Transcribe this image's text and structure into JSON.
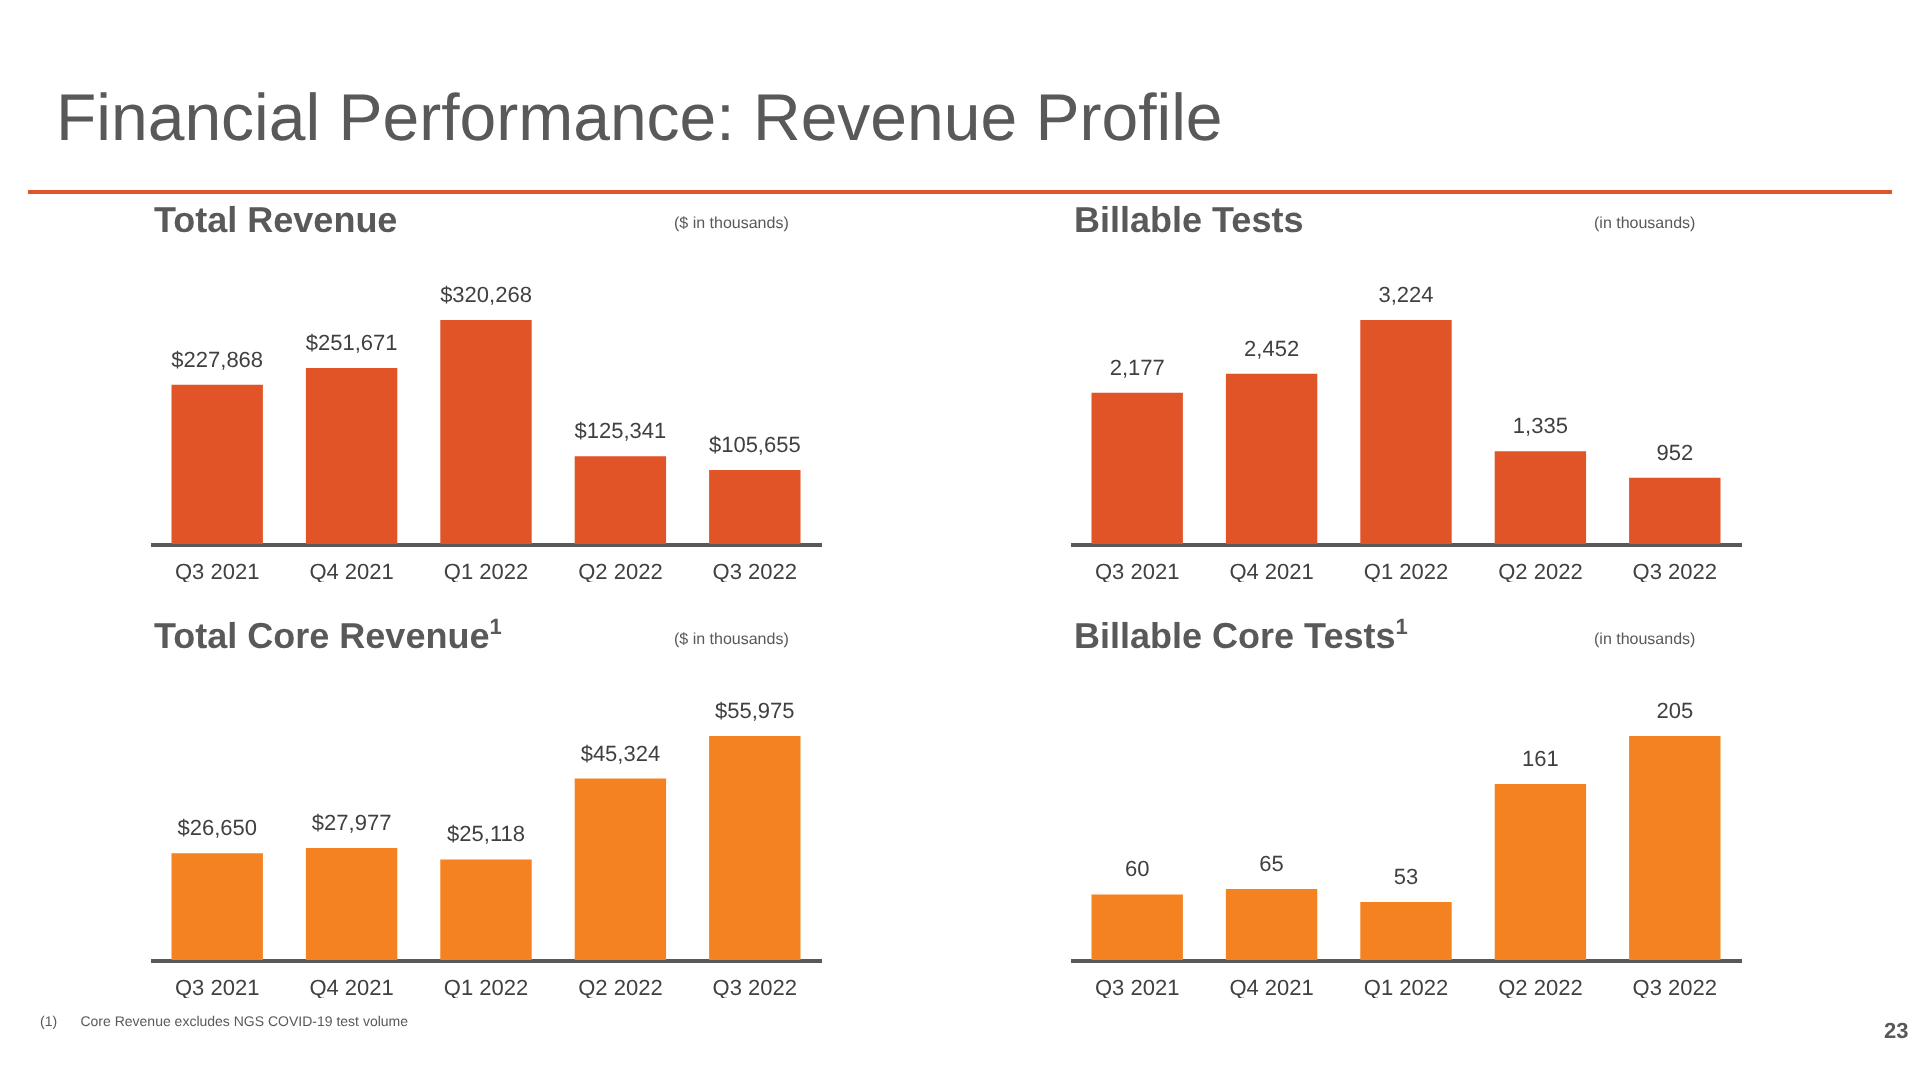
{
  "chart_data": [
    {
      "type": "bar",
      "title": "Total Revenue",
      "subtitle": "($ in thousands)",
      "annotations": [
        "Financial Performance: Revenue Profile"
      ],
      "categories": [
        "Q3 2021",
        "Q4 2021",
        "Q1 2022",
        "Q2 2022",
        "Q3 2022"
      ],
      "values": [
        227868,
        251671,
        320268,
        125341,
        105655
      ],
      "value_labels": [
        "$227,868",
        "$251,671",
        "$320,268",
        "$125,341",
        "$105,655"
      ],
      "color": "#e05427"
    },
    {
      "type": "bar",
      "title": "Billable Tests",
      "subtitle": "(in thousands)",
      "categories": [
        "Q3 2021",
        "Q4 2021",
        "Q1 2022",
        "Q2 2022",
        "Q3 2022"
      ],
      "values": [
        2177,
        2452,
        3224,
        1335,
        952
      ],
      "value_labels": [
        "2,177",
        "2,452",
        "3,224",
        "1,335",
        "952"
      ],
      "color": "#e05427"
    },
    {
      "type": "bar",
      "title": "Total Core Revenue$^{1}$",
      "subtitle": "($ in thousands)",
      "annotations": [
        "(1)      Core Revenue excludes NGS COVID-19 test volume"
      ],
      "categories": [
        "Q3 2021",
        "Q4 2021",
        "Q1 2022",
        "Q2 2022",
        "Q3 2022"
      ],
      "values": [
        26650,
        27977,
        25118,
        45324,
        55975
      ],
      "value_labels": [
        "$26,650",
        "$27,977",
        "$25,118",
        "$45,324",
        "$55,975"
      ],
      "color": "#f58220"
    },
    {
      "type": "bar",
      "title": "Billable Core Tests$^{1}$",
      "subtitle": "(in thousands)",
      "annotations": [
        "23"
      ],
      "categories": [
        "Q3 2021",
        "Q4 2021",
        "Q1 2022",
        "Q2 2022",
        "Q3 2022"
      ],
      "values": [
        60,
        65,
        53,
        161,
        205
      ],
      "data_labels": true,
      "color": "#f58220"
    }
  ]
}
